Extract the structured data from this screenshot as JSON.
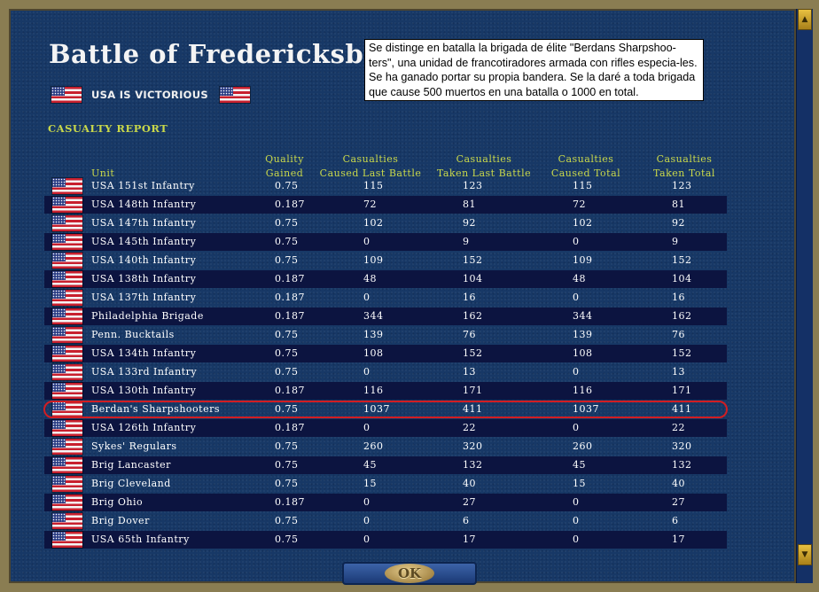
{
  "title": "Battle of Fredericksburg",
  "victory_text": "USA IS VICTORIOUS",
  "note": "Se distinge en batalla la brigada de élite \"Berdans Sharpshoo-ters\", una unidad de francotiradores armada con rifles especia-les. Se ha ganado portar su propia bandera. Se la daré a toda brigada que cause 500 muertos en una batalla o 1000 en total.",
  "report_label": "CASUALTY REPORT",
  "columns": {
    "unit": "Unit",
    "quality": [
      "Quality",
      "Gained"
    ],
    "caused_last": [
      "Casualties",
      "Caused Last Battle"
    ],
    "taken_last": [
      "Casualties",
      "Taken Last Battle"
    ],
    "caused_total": [
      "Casualties",
      "Caused Total"
    ],
    "taken_total": [
      "Casualties",
      "Taken Total"
    ]
  },
  "highlighted_unit": "Berdan's Sharpshooters",
  "units": [
    {
      "name": "USA 151st Infantry",
      "quality": "0.75",
      "caused_last": "115",
      "taken_last": "123",
      "caused_total": "115",
      "taken_total": "123"
    },
    {
      "name": "USA 148th Infantry",
      "quality": "0.187",
      "caused_last": "72",
      "taken_last": "81",
      "caused_total": "72",
      "taken_total": "81"
    },
    {
      "name": "USA 147th Infantry",
      "quality": "0.75",
      "caused_last": "102",
      "taken_last": "92",
      "caused_total": "102",
      "taken_total": "92"
    },
    {
      "name": "USA 145th Infantry",
      "quality": "0.75",
      "caused_last": "0",
      "taken_last": "9",
      "caused_total": "0",
      "taken_total": "9"
    },
    {
      "name": "USA 140th Infantry",
      "quality": "0.75",
      "caused_last": "109",
      "taken_last": "152",
      "caused_total": "109",
      "taken_total": "152"
    },
    {
      "name": "USA 138th Infantry",
      "quality": "0.187",
      "caused_last": "48",
      "taken_last": "104",
      "caused_total": "48",
      "taken_total": "104"
    },
    {
      "name": "USA 137th Infantry",
      "quality": "0.187",
      "caused_last": "0",
      "taken_last": "16",
      "caused_total": "0",
      "taken_total": "16"
    },
    {
      "name": "Philadelphia Brigade",
      "quality": "0.187",
      "caused_last": "344",
      "taken_last": "162",
      "caused_total": "344",
      "taken_total": "162"
    },
    {
      "name": "Penn. Bucktails",
      "quality": "0.75",
      "caused_last": "139",
      "taken_last": "76",
      "caused_total": "139",
      "taken_total": "76"
    },
    {
      "name": "USA 134th Infantry",
      "quality": "0.75",
      "caused_last": "108",
      "taken_last": "152",
      "caused_total": "108",
      "taken_total": "152"
    },
    {
      "name": "USA 133rd Infantry",
      "quality": "0.75",
      "caused_last": "0",
      "taken_last": "13",
      "caused_total": "0",
      "taken_total": "13"
    },
    {
      "name": "USA 130th Infantry",
      "quality": "0.187",
      "caused_last": "116",
      "taken_last": "171",
      "caused_total": "116",
      "taken_total": "171"
    },
    {
      "name": "Berdan's Sharpshooters",
      "quality": "0.75",
      "caused_last": "1037",
      "taken_last": "411",
      "caused_total": "1037",
      "taken_total": "411"
    },
    {
      "name": "USA 126th Infantry",
      "quality": "0.187",
      "caused_last": "0",
      "taken_last": "22",
      "caused_total": "0",
      "taken_total": "22"
    },
    {
      "name": "Sykes' Regulars",
      "quality": "0.75",
      "caused_last": "260",
      "taken_last": "320",
      "caused_total": "260",
      "taken_total": "320"
    },
    {
      "name": "Brig Lancaster",
      "quality": "0.75",
      "caused_last": "45",
      "taken_last": "132",
      "caused_total": "45",
      "taken_total": "132"
    },
    {
      "name": "Brig Cleveland",
      "quality": "0.75",
      "caused_last": "15",
      "taken_last": "40",
      "caused_total": "15",
      "taken_total": "40"
    },
    {
      "name": "Brig Ohio",
      "quality": "0.187",
      "caused_last": "0",
      "taken_last": "27",
      "caused_total": "0",
      "taken_total": "27"
    },
    {
      "name": "Brig Dover",
      "quality": "0.75",
      "caused_last": "0",
      "taken_last": "6",
      "caused_total": "0",
      "taken_total": "6"
    },
    {
      "name": "USA 65th Infantry",
      "quality": "0.75",
      "caused_last": "0",
      "taken_last": "17",
      "caused_total": "0",
      "taken_total": "17"
    }
  ],
  "ok_label": "OK",
  "icons": {
    "flag": "usa-flag-icon",
    "scroll_up": "chevron-up-icon",
    "scroll_down": "chevron-down-icon"
  },
  "colors": {
    "panel": "#173866",
    "row_dark": "#0c1440",
    "header_text": "#c9d84a",
    "highlight": "#d21d22"
  }
}
